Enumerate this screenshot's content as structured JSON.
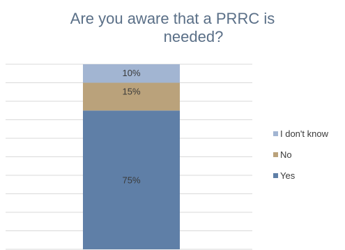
{
  "chart_data": {
    "type": "bar",
    "stacked": true,
    "title_lines": [
      "Are you aware that a PRRC is",
      "needed?"
    ],
    "ylim": [
      0,
      100
    ],
    "grid": true,
    "legend_position": "right",
    "series": [
      {
        "name": "Yes",
        "value": 75,
        "label": "75%",
        "color": "#5f7fa7"
      },
      {
        "name": "No",
        "value": 15,
        "label": "15%",
        "color": "#baa27b"
      },
      {
        "name": "I don't know",
        "value": 10,
        "label": "10%",
        "color": "#a2b5d2"
      }
    ],
    "legend_order": [
      "I don't know",
      "No",
      "Yes"
    ]
  }
}
